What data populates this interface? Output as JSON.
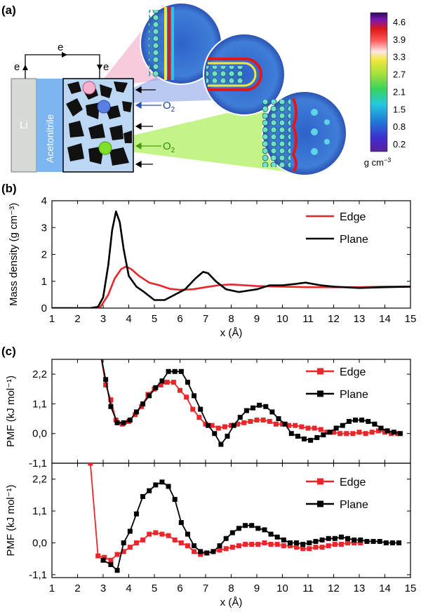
{
  "panel_labels": {
    "a": "(a)",
    "b": "(b)",
    "c": "(c)"
  },
  "schematic": {
    "electron_labels": [
      "e",
      "e",
      "e"
    ],
    "li_label": "Li",
    "electrolyte_label": "Acetonitrile",
    "oxygen_labels": [
      "O",
      "O"
    ],
    "oxygen_subscript": "2"
  },
  "colorbar": {
    "ticks": [
      "4.6",
      "3.9",
      "3.3",
      "2.7",
      "2.1",
      "1.5",
      "0.8",
      "0.2"
    ],
    "unit": "g cm",
    "unit_superscript": "−3"
  },
  "colors": {
    "edge": "#e8272a",
    "plane": "#000000"
  },
  "chart_data": [
    {
      "type": "line",
      "panel": "b",
      "xlabel": "x (Å)",
      "ylabel": "Mass density (g cm⁻³)",
      "xlim": [
        1,
        15
      ],
      "ylim": [
        0,
        4
      ],
      "xticks": [
        1,
        2,
        3,
        4,
        5,
        6,
        7,
        8,
        9,
        10,
        11,
        12,
        13,
        14,
        15
      ],
      "yticks": [
        0,
        1,
        2,
        3,
        4
      ],
      "legend": "top-right",
      "series": [
        {
          "name": "Edge",
          "x": [
            1,
            2.6,
            2.9,
            3.2,
            3.45,
            3.7,
            3.9,
            4.1,
            4.4,
            4.8,
            5.2,
            5.6,
            6,
            6.5,
            7,
            7.5,
            8,
            9,
            10,
            11,
            12,
            13,
            14,
            15
          ],
          "y": [
            0,
            0,
            0.05,
            0.5,
            1.1,
            1.45,
            1.55,
            1.45,
            1.2,
            0.95,
            0.85,
            0.72,
            0.68,
            0.7,
            0.78,
            0.85,
            0.88,
            0.82,
            0.8,
            0.78,
            0.78,
            0.78,
            0.8,
            0.8
          ]
        },
        {
          "name": "Plane",
          "x": [
            1,
            2.5,
            2.8,
            3,
            3.2,
            3.35,
            3.5,
            3.65,
            3.8,
            4,
            4.3,
            4.6,
            5,
            5.4,
            5.8,
            6.2,
            6.6,
            6.9,
            7.1,
            7.4,
            7.8,
            8.3,
            9,
            9.5,
            10,
            10.5,
            10.9,
            11.5,
            12,
            13,
            14,
            15
          ],
          "y": [
            0,
            0,
            0.05,
            0.4,
            1.6,
            2.9,
            3.6,
            3.2,
            2.2,
            1.2,
            0.8,
            0.6,
            0.3,
            0.3,
            0.5,
            0.7,
            1.1,
            1.35,
            1.3,
            1.0,
            0.7,
            0.6,
            0.7,
            0.85,
            0.85,
            0.9,
            0.95,
            0.85,
            0.8,
            0.75,
            0.78,
            0.8
          ]
        }
      ]
    },
    {
      "type": "line",
      "panel": "c-top",
      "xlabel": "",
      "ylabel": "PMF (kJ mol⁻¹)",
      "xlim": [
        1,
        15
      ],
      "ylim": [
        -1.1,
        2.75
      ],
      "yticks": [
        -1.1,
        0.0,
        1.1,
        2.2
      ],
      "ytick_labels": [
        "-1,1",
        "0,0",
        "1,1",
        "2,2"
      ],
      "legend": "top-right",
      "series": [
        {
          "name": "Edge",
          "x": [
            2.9,
            3.1,
            3.3,
            3.5,
            3.75,
            4,
            4.25,
            4.5,
            4.75,
            5,
            5.25,
            5.5,
            5.75,
            6,
            6.25,
            6.5,
            6.75,
            7,
            7.25,
            7.5,
            7.75,
            8,
            8.25,
            8.5,
            8.75,
            9,
            9.25,
            9.5,
            9.75,
            10,
            10.25,
            10.5,
            10.75,
            11,
            11.25,
            11.5,
            11.75,
            12,
            12.25,
            12.5,
            12.75,
            13,
            13.25,
            13.5,
            13.75,
            14,
            14.25,
            14.5
          ],
          "y": [
            2.95,
            1.8,
            1.25,
            0.5,
            0.35,
            0.45,
            0.7,
            1.0,
            1.45,
            1.65,
            1.8,
            1.9,
            1.9,
            1.6,
            1.35,
            0.9,
            0.6,
            0.35,
            0.3,
            0.2,
            0.25,
            0.3,
            0.35,
            0.4,
            0.45,
            0.5,
            0.5,
            0.45,
            0.35,
            0.35,
            0.3,
            0.3,
            0.25,
            0.2,
            0.2,
            0.15,
            0.05,
            0.05,
            0.0,
            0.0,
            0.0,
            0.05,
            0.0,
            0.05,
            0.1,
            0.05,
            0.0,
            0.0
          ]
        },
        {
          "name": "Plane",
          "x": [
            2.9,
            3.1,
            3.3,
            3.55,
            3.8,
            4.05,
            4.3,
            4.55,
            4.8,
            5.05,
            5.3,
            5.55,
            5.8,
            6.05,
            6.3,
            6.55,
            6.8,
            7.1,
            7.35,
            7.6,
            7.85,
            8.1,
            8.35,
            8.6,
            8.85,
            9.1,
            9.35,
            9.6,
            9.85,
            10.1,
            10.35,
            10.6,
            10.85,
            11.1,
            11.35,
            11.6,
            11.85,
            12.1,
            12.35,
            12.6,
            12.85,
            13.1,
            13.35,
            13.6,
            13.85,
            14.1,
            14.35,
            14.6
          ],
          "y": [
            2.95,
            2.0,
            1.0,
            0.4,
            0.4,
            0.5,
            0.8,
            1.1,
            1.4,
            1.7,
            1.95,
            2.3,
            2.3,
            2.3,
            1.9,
            1.4,
            0.9,
            0.3,
            0.0,
            -0.4,
            -0.1,
            0.3,
            0.6,
            0.85,
            0.95,
            1.05,
            1.0,
            0.8,
            0.55,
            0.35,
            0.0,
            -0.1,
            -0.2,
            -0.25,
            -0.15,
            -0.05,
            0.05,
            0.2,
            0.3,
            0.45,
            0.5,
            0.5,
            0.45,
            0.35,
            0.2,
            0.1,
            0.05,
            0.0
          ]
        }
      ]
    },
    {
      "type": "line",
      "panel": "c-bottom",
      "xlabel": "x (Å)",
      "ylabel": "PMF (kJ mol⁻¹)",
      "xlim": [
        1,
        15
      ],
      "ylim": [
        -1.2,
        2.75
      ],
      "xticks": [
        1,
        2,
        3,
        4,
        5,
        6,
        7,
        8,
        9,
        10,
        11,
        12,
        13,
        14,
        15
      ],
      "yticks": [
        -1.1,
        0.0,
        1.1,
        2.2
      ],
      "ytick_labels": [
        "-1,1",
        "0,0",
        "1,1",
        "2,2"
      ],
      "legend": "top-right",
      "series": [
        {
          "name": "Edge",
          "x": [
            2.5,
            2.8,
            3.05,
            3.3,
            3.55,
            3.8,
            4.05,
            4.3,
            4.55,
            4.8,
            5.05,
            5.3,
            5.55,
            5.8,
            6.05,
            6.3,
            6.55,
            6.8,
            7.05,
            7.3,
            7.55,
            7.8,
            8.05,
            8.3,
            8.55,
            8.8,
            9.05,
            9.3,
            9.55,
            9.8,
            10.05,
            10.3,
            10.55,
            10.8,
            11.05,
            11.3,
            11.55,
            11.8,
            12.05,
            12.3,
            12.55,
            12.8,
            13.05
          ],
          "y": [
            2.75,
            -0.45,
            -0.5,
            -0.6,
            -0.4,
            -0.3,
            -0.15,
            0.0,
            0.1,
            0.3,
            0.35,
            0.3,
            0.25,
            0.1,
            0.0,
            -0.1,
            -0.3,
            -0.4,
            -0.35,
            -0.3,
            -0.25,
            -0.2,
            -0.15,
            -0.1,
            -0.05,
            -0.05,
            -0.05,
            0.0,
            -0.05,
            -0.05,
            -0.1,
            -0.1,
            -0.15,
            -0.2,
            -0.2,
            -0.15,
            -0.15,
            -0.1,
            -0.05,
            -0.05,
            0.0,
            0.0,
            0.0
          ]
        },
        {
          "name": "Plane",
          "x": [
            3.0,
            3.3,
            3.55,
            3.8,
            4.05,
            4.3,
            4.55,
            4.8,
            5.05,
            5.3,
            5.55,
            5.8,
            6.05,
            6.3,
            6.55,
            6.8,
            7.05,
            7.3,
            7.55,
            7.8,
            8.05,
            8.3,
            8.55,
            8.8,
            9.05,
            9.3,
            9.55,
            9.8,
            10.05,
            10.3,
            10.55,
            10.8,
            11.05,
            11.3,
            11.55,
            11.8,
            12.05,
            12.3,
            12.55,
            12.8,
            13.05,
            13.3,
            13.55,
            13.8,
            14.05,
            14.3,
            14.55
          ],
          "y": [
            -0.6,
            -0.75,
            -0.95,
            0.0,
            0.4,
            1.0,
            1.6,
            1.8,
            2.0,
            2.1,
            1.95,
            1.5,
            0.7,
            0.3,
            -0.1,
            -0.3,
            -0.35,
            -0.3,
            -0.1,
            0.15,
            0.35,
            0.5,
            0.6,
            0.6,
            0.5,
            0.45,
            0.3,
            0.2,
            0.1,
            0.0,
            0.0,
            -0.05,
            0.0,
            0.05,
            0.1,
            0.15,
            0.15,
            0.2,
            0.15,
            0.1,
            0.1,
            0.05,
            0.05,
            0.05,
            0.0,
            0.0,
            0.0
          ]
        }
      ]
    }
  ]
}
